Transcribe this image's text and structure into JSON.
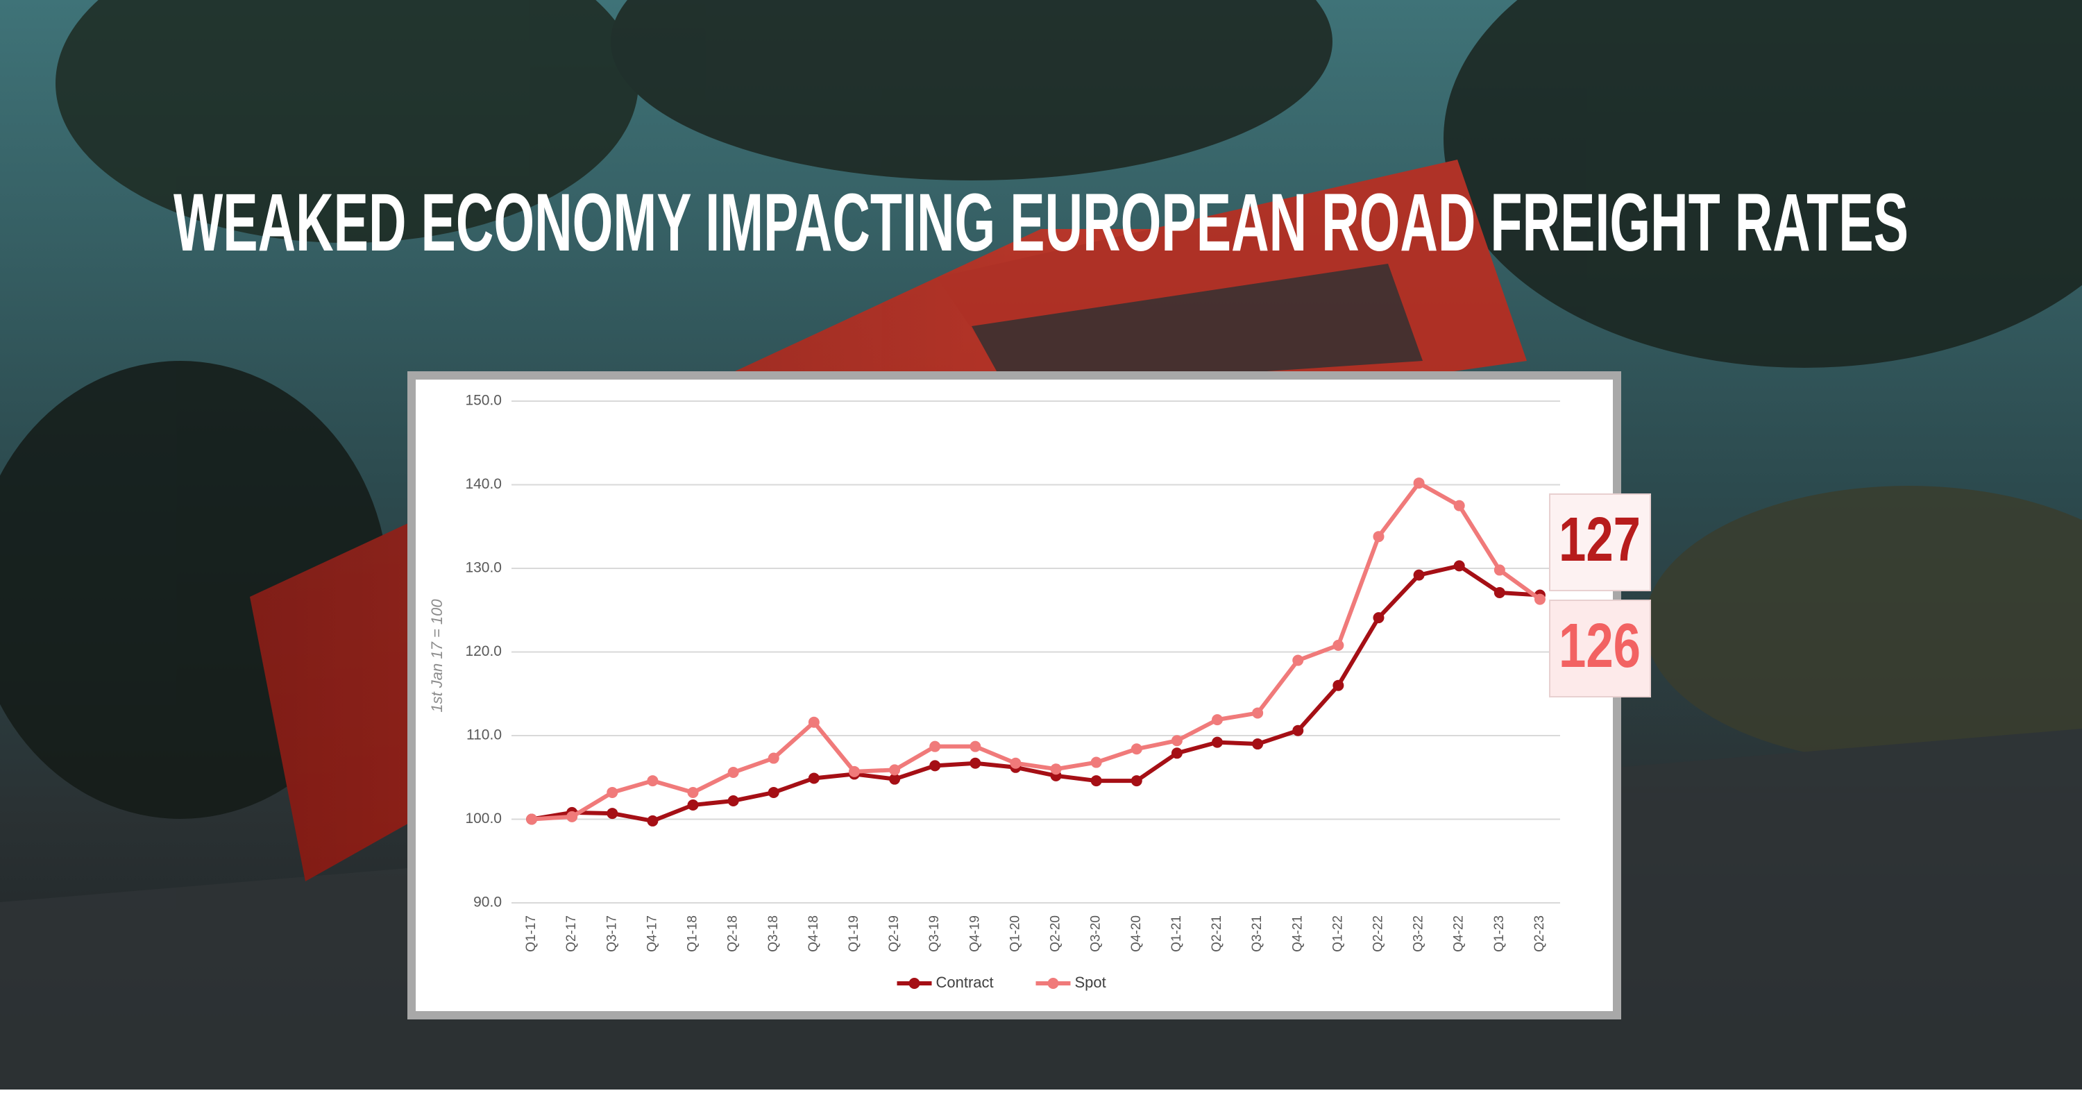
{
  "chart_data": {
    "type": "line",
    "title": "WEAKED ECONOMY IMPACTING EUROPEAN ROAD FREIGHT RATES",
    "y_label": "1st Jan 17 = 100",
    "categories": [
      "Q1-17",
      "Q2-17",
      "Q3-17",
      "Q4-17",
      "Q1-18",
      "Q2-18",
      "Q3-18",
      "Q4-18",
      "Q1-19",
      "Q2-19",
      "Q3-19",
      "Q4-19",
      "Q1-20",
      "Q2-20",
      "Q3-20",
      "Q4-20",
      "Q1-21",
      "Q2-21",
      "Q3-21",
      "Q4-21",
      "Q1-22",
      "Q2-22",
      "Q3-22",
      "Q4-22",
      "Q1-23",
      "Q2-23"
    ],
    "series": [
      {
        "name": "Contract",
        "color": "#a50f15",
        "values": [
          100.0,
          100.8,
          100.7,
          99.8,
          101.7,
          102.2,
          103.2,
          104.9,
          105.4,
          104.8,
          106.4,
          106.7,
          106.2,
          105.2,
          104.6,
          104.6,
          107.9,
          109.2,
          109.0,
          110.6,
          116.0,
          124.1,
          129.2,
          130.3,
          127.1,
          126.8
        ]
      },
      {
        "name": "Spot",
        "color": "#f07a7a",
        "values": [
          100.0,
          100.3,
          103.2,
          104.6,
          103.2,
          105.6,
          107.3,
          111.6,
          105.7,
          105.9,
          108.7,
          108.7,
          106.7,
          106.0,
          106.8,
          108.4,
          109.4,
          111.9,
          112.7,
          119.0,
          120.8,
          133.8,
          140.2,
          137.5,
          129.8,
          126.3
        ]
      }
    ],
    "ylim": [
      90,
      150
    ],
    "yticks": [
      {
        "value": 90,
        "label": "90.0"
      },
      {
        "value": 100,
        "label": "100.0"
      },
      {
        "value": 110,
        "label": "110.0"
      },
      {
        "value": 120,
        "label": "120.0"
      },
      {
        "value": 130,
        "label": "130.0"
      },
      {
        "value": 140,
        "label": "140.0"
      },
      {
        "value": 150,
        "label": "150.0"
      }
    ],
    "grid": true,
    "legend": "bottom",
    "annotations": [
      {
        "text": "127",
        "color": "#b71c1c"
      },
      {
        "text": "126",
        "color": "#f26262"
      }
    ]
  }
}
